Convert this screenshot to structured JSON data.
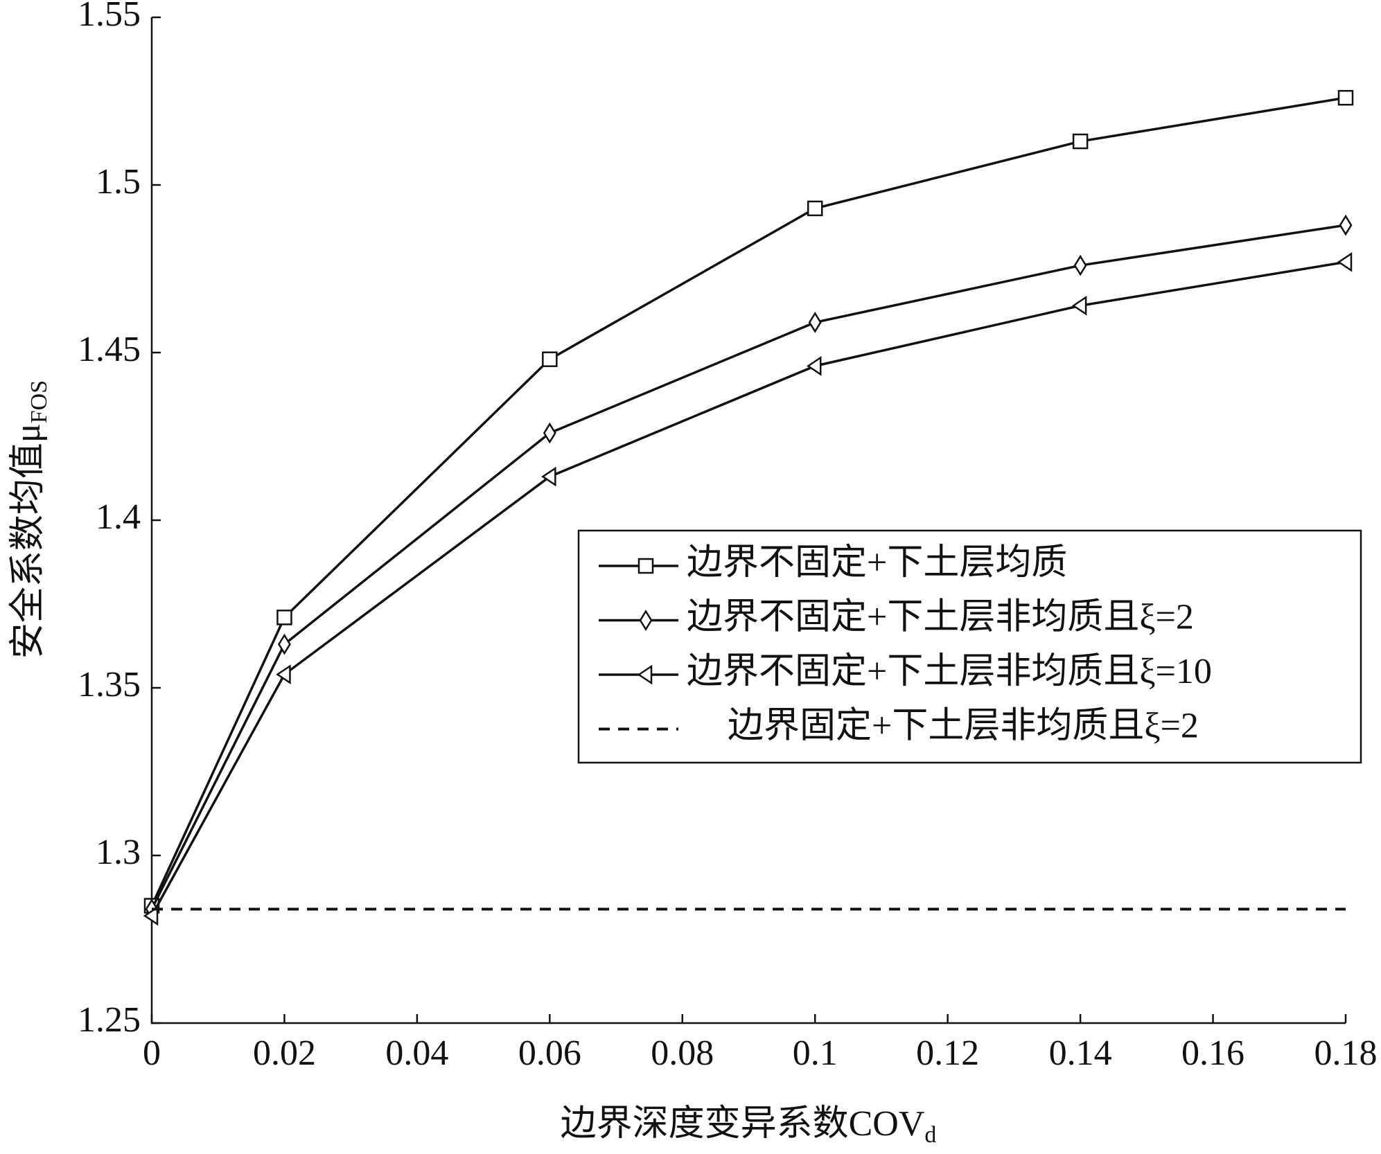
{
  "chart_data": {
    "type": "line",
    "xlabel": {
      "text": "边界深度变异系数COV",
      "subscript": "d"
    },
    "ylabel": {
      "text": "安全系数均值μ",
      "subscript": "FOS"
    },
    "x": [
      0,
      0.02,
      0.06,
      0.1,
      0.14,
      0.18
    ],
    "xlim": [
      0,
      0.18
    ],
    "xticks": [
      0,
      0.02,
      0.04,
      0.06,
      0.08,
      0.1,
      0.12,
      0.14,
      0.16,
      0.18
    ],
    "ylim": [
      1.25,
      1.55
    ],
    "yticks": [
      1.25,
      1.3,
      1.35,
      1.4,
      1.45,
      1.5,
      1.55
    ],
    "grid": false,
    "legend": "right",
    "series": [
      {
        "name": "边界不固定+下土层均质",
        "color": "#111111",
        "marker": "square",
        "dash": false,
        "values": [
          1.285,
          1.371,
          1.448,
          1.493,
          1.513,
          1.526
        ]
      },
      {
        "name": "边界不固定+下土层非均质且ξ=2",
        "color": "#111111",
        "marker": "diamond",
        "dash": false,
        "values": [
          1.284,
          1.363,
          1.426,
          1.459,
          1.476,
          1.488
        ]
      },
      {
        "name": "边界不固定+下土层非均质且ξ=10",
        "color": "#111111",
        "marker": "triangle-left",
        "dash": false,
        "values": [
          1.282,
          1.354,
          1.413,
          1.446,
          1.464,
          1.477
        ]
      },
      {
        "name": "边界固定+下土层非均质且ξ=2",
        "color": "#111111",
        "marker": "none",
        "dash": true,
        "x": [
          0,
          0.18
        ],
        "values": [
          1.284,
          1.284
        ]
      }
    ]
  }
}
